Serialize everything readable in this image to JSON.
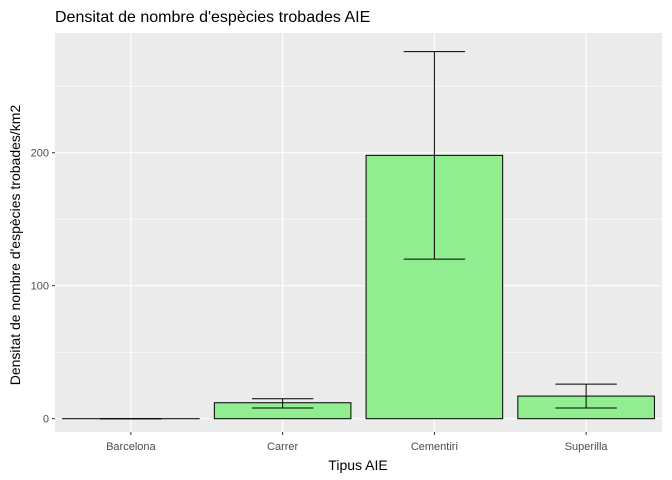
{
  "chart_data": {
    "type": "bar",
    "title": "Densitat de nombre d'espècies trobades AIE",
    "xlabel": "Tipus AIE",
    "ylabel": "Densitat de nombre d'espècies trobades/km2",
    "categories": [
      "Barcelona",
      "Carrer",
      "Cementiri",
      "Superilla"
    ],
    "values": [
      0,
      12,
      198,
      17
    ],
    "error_bars": [
      {
        "low": 0,
        "high": 0
      },
      {
        "low": 8,
        "high": 15
      },
      {
        "low": 120,
        "high": 276
      },
      {
        "low": 8,
        "high": 26
      }
    ],
    "yticks": [
      0,
      100,
      200
    ],
    "ylim": [
      -10,
      290
    ],
    "grid": true,
    "colors": {
      "panel": "#ebebeb",
      "grid_major": "#ffffff",
      "bar_fill": "#90ee90",
      "bar_stroke": "#000000",
      "error_bar": "#000000",
      "tick_text": "#4d4d4d"
    }
  }
}
